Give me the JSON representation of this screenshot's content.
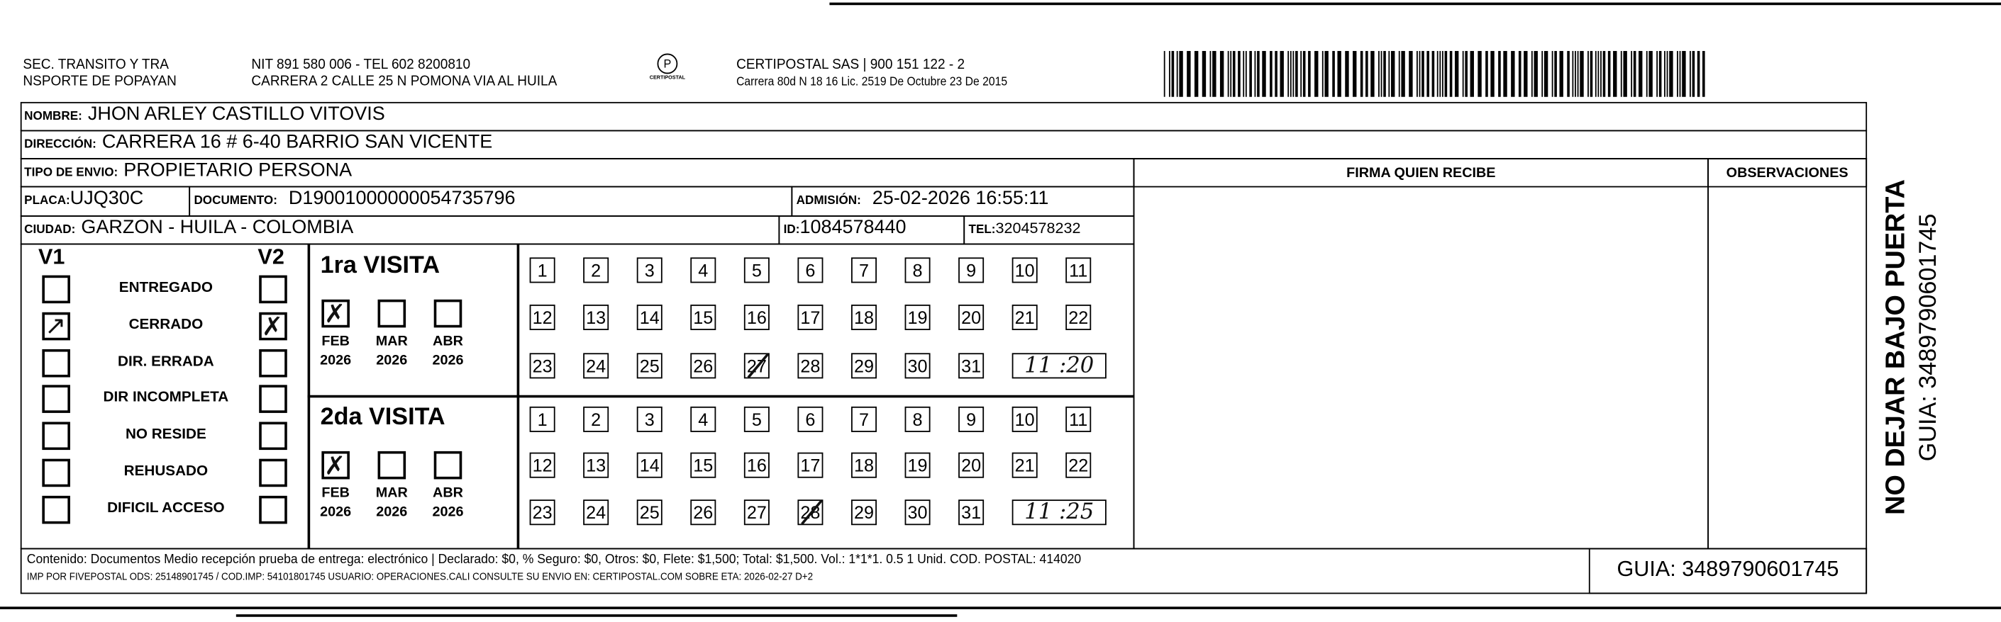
{
  "header": {
    "sender_line1": "SEC. TRANSITO Y TRA",
    "sender_line2": "NSPORTE DE POPAYAN",
    "nit_line": "NIT 891 580 006 - TEL 602 8200810",
    "address_line": "CARRERA 2 CALLE 25 N POMONA VIA AL HUILA",
    "logo_text": "CERTIPOSTAL",
    "company_line": "CERTIPOSTAL SAS | 900 151 122 - 2",
    "license_line": "Carrera 80d N 18 16  Lic. 2519 De Octubre 23 De 2015"
  },
  "recipient": {
    "nombre_label": "NOMBRE:",
    "nombre": "JHON ARLEY CASTILLO VITOVIS",
    "direccion_label": "DIRECCIÓN:",
    "direccion": "CARRERA 16 # 6-40 BARRIO SAN VICENTE",
    "tipo_label": "TIPO DE ENVIO:",
    "tipo": "PROPIETARIO PERSONA",
    "placa_label": "PLACA:",
    "placa": "UJQ30C",
    "documento_label": "DOCUMENTO:",
    "documento": "D19001000000054735796",
    "admision_label": "ADMISIÓN:",
    "admision": "25-02-2026 16:55:11",
    "ciudad_label": "CIUDAD:",
    "ciudad": "GARZON - HUILA - COLOMBIA",
    "id_label": "ID:",
    "id": "1084578440",
    "tel_label": "TEL:",
    "tel": "3204578232"
  },
  "firma_label": "FIRMA QUIEN RECIBE",
  "observaciones_label": "OBSERVACIONES",
  "v1_label": "V1",
  "v2_label": "V2",
  "statuses": [
    "ENTREGADO",
    "CERRADO",
    "DIR. ERRADA",
    "DIR INCOMPLETA",
    "NO RESIDE",
    "REHUSADO",
    "DIFICIL ACCESO"
  ],
  "status_marked": {
    "v1": "CERRADO",
    "v2": "CERRADO"
  },
  "visits": [
    {
      "title": "1ra VISITA",
      "months": [
        {
          "m": "FEB",
          "y": "2026",
          "checked": true
        },
        {
          "m": "MAR",
          "y": "2026",
          "checked": false
        },
        {
          "m": "ABR",
          "y": "2026",
          "checked": false
        }
      ],
      "marked_day": "27",
      "time": "11 :20"
    },
    {
      "title": "2da VISITA",
      "months": [
        {
          "m": "FEB",
          "y": "2026",
          "checked": true
        },
        {
          "m": "MAR",
          "y": "2026",
          "checked": false
        },
        {
          "m": "ABR",
          "y": "2026",
          "checked": false
        }
      ],
      "marked_day": "28",
      "time": "11 :25"
    }
  ],
  "days": [
    "1",
    "2",
    "3",
    "4",
    "5",
    "6",
    "7",
    "8",
    "9",
    "10",
    "11",
    "12",
    "13",
    "14",
    "15",
    "16",
    "17",
    "18",
    "19",
    "20",
    "21",
    "22",
    "23",
    "24",
    "25",
    "26",
    "27",
    "28",
    "29",
    "30",
    "31"
  ],
  "footer": {
    "contenido": "Contenido: Documentos Medio recepción prueba de entrega: electrónico | Declarado: $0, % Seguro: $0, Otros: $0, Flete: $1,500; Total: $1,500. Vol.: 1*1*1. 0.5  1 Unid. COD. POSTAL: 414020",
    "imp": "IMP POR FIVEPOSTAL ODS: 25148901745 / COD.IMP: 54101801745 USUARIO: OPERACIONES.CALI CONSULTE SU ENVIO EN: CERTIPOSTAL.COM SOBRE ETA: 2026-02-27 D+2",
    "guia": "GUIA: 3489790601745"
  },
  "side": {
    "warning": "NO DEJAR BAJO PUERTA",
    "guia": "GUIA: 3489790601745"
  }
}
